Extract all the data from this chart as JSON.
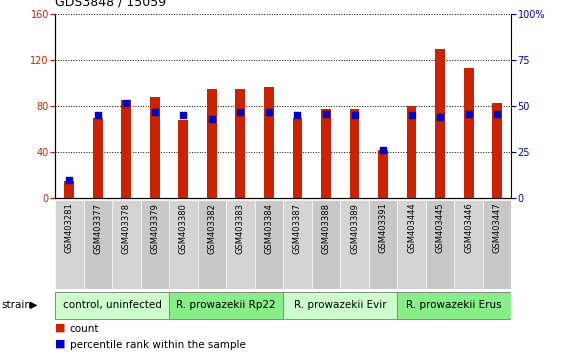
{
  "title": "GDS3848 / 15059",
  "samples": [
    "GSM403281",
    "GSM403377",
    "GSM403378",
    "GSM403379",
    "GSM403380",
    "GSM403382",
    "GSM403383",
    "GSM403384",
    "GSM403387",
    "GSM403388",
    "GSM403389",
    "GSM403391",
    "GSM403444",
    "GSM403445",
    "GSM403446",
    "GSM403447"
  ],
  "count_values": [
    15,
    70,
    85,
    88,
    68,
    95,
    95,
    97,
    70,
    78,
    78,
    42,
    80,
    130,
    113,
    83
  ],
  "percentile_values": [
    10,
    45,
    52,
    47,
    45,
    43,
    47,
    47,
    45,
    46,
    45,
    26,
    45,
    44,
    46,
    46
  ],
  "groups": [
    {
      "label": "control, uninfected",
      "start": 0,
      "end": 4
    },
    {
      "label": "R. prowazekii Rp22",
      "start": 4,
      "end": 8
    },
    {
      "label": "R. prowazekii Evir",
      "start": 8,
      "end": 12
    },
    {
      "label": "R. prowazekii Erus",
      "start": 12,
      "end": 16
    }
  ],
  "group_colors": [
    "#ccffcc",
    "#88ee88",
    "#ccffcc",
    "#88ee88"
  ],
  "ylim_left": [
    0,
    160
  ],
  "ylim_right": [
    0,
    100
  ],
  "yticks_left": [
    0,
    40,
    80,
    120,
    160
  ],
  "yticks_right": [
    0,
    25,
    50,
    75,
    100
  ],
  "bar_color": "#cc2200",
  "dot_color": "#0000cc",
  "axis_color_left": "#cc2200",
  "axis_color_right": "#0000cc",
  "bar_width": 0.35,
  "title_fontsize": 9,
  "tick_fontsize": 7,
  "label_fontsize": 7,
  "group_fontsize": 7.5,
  "legend_fontsize": 7.5
}
